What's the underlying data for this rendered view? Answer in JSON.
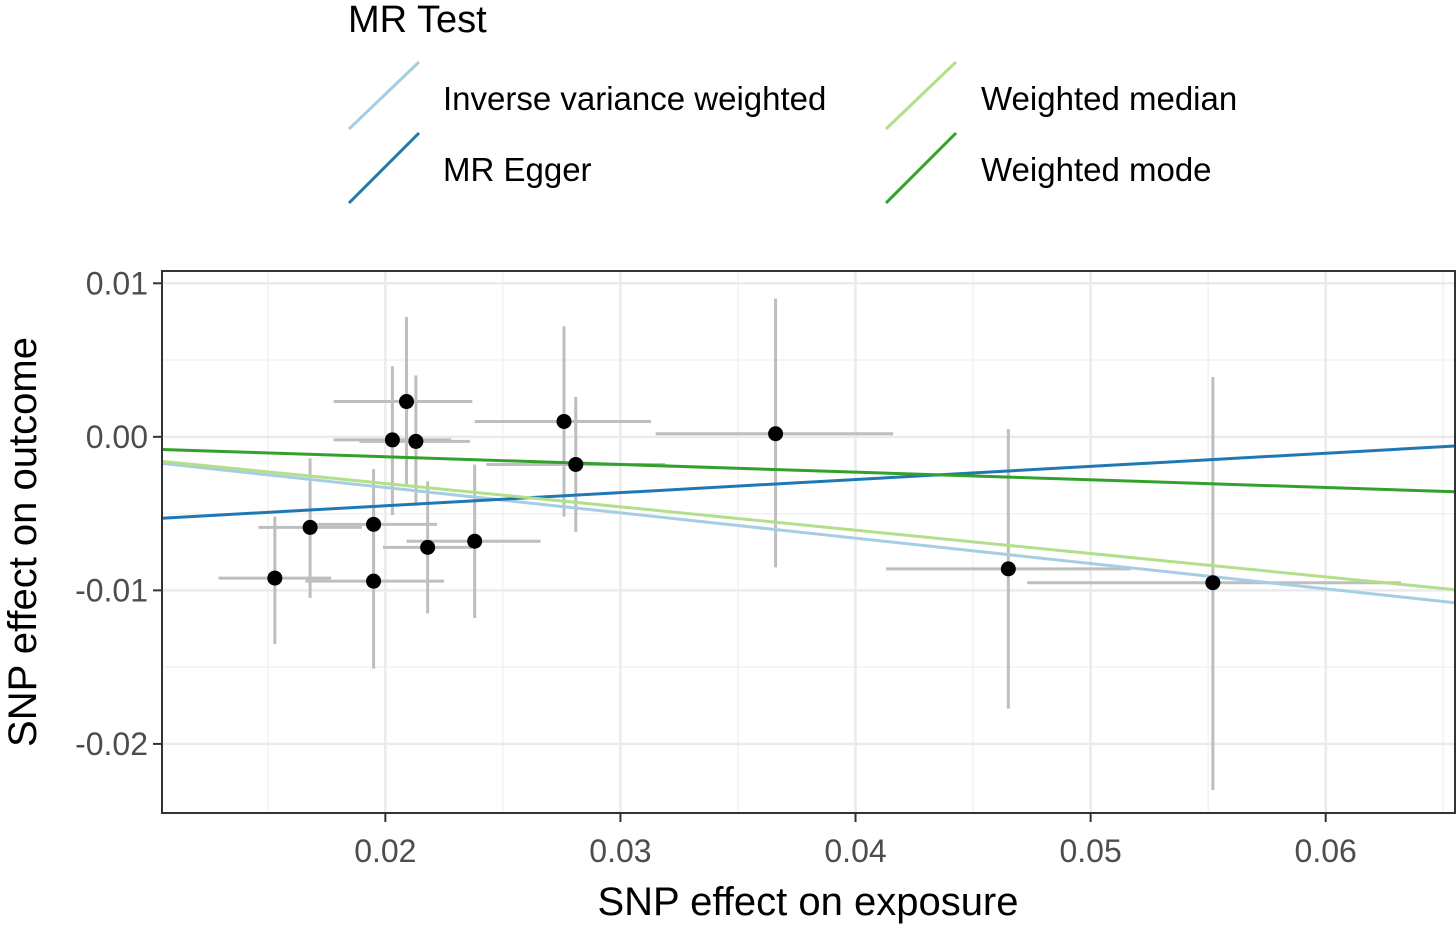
{
  "chart_data": {
    "type": "scatter",
    "xlabel": "SNP effect on exposure",
    "ylabel": "SNP effect on outcome",
    "xlim": [
      0.0105,
      0.0655
    ],
    "ylim": [
      -0.0245,
      0.0108
    ],
    "x_ticks": [
      0.02,
      0.03,
      0.04,
      0.05,
      0.06
    ],
    "x_tick_labels": [
      "0.02",
      "0.03",
      "0.04",
      "0.05",
      "0.06"
    ],
    "y_ticks": [
      0.01,
      0.0,
      -0.01,
      -0.02
    ],
    "y_tick_labels": [
      "0.01",
      "0.00",
      "-0.01",
      "-0.02"
    ],
    "grid": true,
    "legend": {
      "title": "MR Test",
      "position": "top",
      "entries": [
        {
          "label": "Inverse variance weighted",
          "color": "#a6cee3"
        },
        {
          "label": "MR Egger",
          "color": "#1f78b4"
        },
        {
          "label": "Weighted median",
          "color": "#b2df8a"
        },
        {
          "label": "Weighted mode",
          "color": "#33a02c"
        }
      ]
    },
    "lines": [
      {
        "name": "Inverse variance weighted",
        "color": "#a6cee3",
        "intercept": 0.0,
        "slope": -0.165
      },
      {
        "name": "MR Egger",
        "color": "#1f78b4",
        "intercept": -0.0062,
        "slope": 0.0855
      },
      {
        "name": "Weighted median",
        "color": "#b2df8a",
        "intercept": 0.0,
        "slope": -0.152
      },
      {
        "name": "Weighted mode",
        "color": "#33a02c",
        "intercept": -0.0003,
        "slope": -0.05
      }
    ],
    "points": [
      {
        "x": 0.0153,
        "y": -0.0092,
        "x_lo": 0.0129,
        "x_hi": 0.0177,
        "y_lo": -0.0135,
        "y_hi": -0.0052
      },
      {
        "x": 0.0168,
        "y": -0.0059,
        "x_lo": 0.0146,
        "x_hi": 0.019,
        "y_lo": -0.0105,
        "y_hi": -0.0014
      },
      {
        "x": 0.0195,
        "y": -0.0057,
        "x_lo": 0.0166,
        "x_hi": 0.0222,
        "y_lo": -0.0094,
        "y_hi": -0.0021
      },
      {
        "x": 0.0195,
        "y": -0.0094,
        "x_lo": 0.0166,
        "x_hi": 0.0225,
        "y_lo": -0.0151,
        "y_hi": -0.0037
      },
      {
        "x": 0.0203,
        "y": -0.0002,
        "x_lo": 0.0178,
        "x_hi": 0.0228,
        "y_lo": -0.0051,
        "y_hi": 0.0046
      },
      {
        "x": 0.0209,
        "y": 0.0023,
        "x_lo": 0.0178,
        "x_hi": 0.0237,
        "y_lo": -0.0031,
        "y_hi": 0.0078
      },
      {
        "x": 0.0213,
        "y": -0.0003,
        "x_lo": 0.0189,
        "x_hi": 0.0236,
        "y_lo": -0.0045,
        "y_hi": 0.004
      },
      {
        "x": 0.0218,
        "y": -0.0072,
        "x_lo": 0.0199,
        "x_hi": 0.0237,
        "y_lo": -0.0115,
        "y_hi": -0.0029
      },
      {
        "x": 0.0238,
        "y": -0.0068,
        "x_lo": 0.0209,
        "x_hi": 0.0266,
        "y_lo": -0.0118,
        "y_hi": -0.0018
      },
      {
        "x": 0.0276,
        "y": 0.001,
        "x_lo": 0.0238,
        "x_hi": 0.0313,
        "y_lo": -0.0052,
        "y_hi": 0.0072
      },
      {
        "x": 0.0281,
        "y": -0.0018,
        "x_lo": 0.0243,
        "x_hi": 0.0319,
        "y_lo": -0.0062,
        "y_hi": 0.0026
      },
      {
        "x": 0.0366,
        "y": 0.0002,
        "x_lo": 0.0315,
        "x_hi": 0.0416,
        "y_lo": -0.0085,
        "y_hi": 0.009
      },
      {
        "x": 0.0465,
        "y": -0.0086,
        "x_lo": 0.0413,
        "x_hi": 0.0517,
        "y_lo": -0.0177,
        "y_hi": 0.0005
      },
      {
        "x": 0.0552,
        "y": -0.0095,
        "x_lo": 0.0473,
        "x_hi": 0.0632,
        "y_lo": -0.023,
        "y_hi": 0.0039
      }
    ]
  }
}
